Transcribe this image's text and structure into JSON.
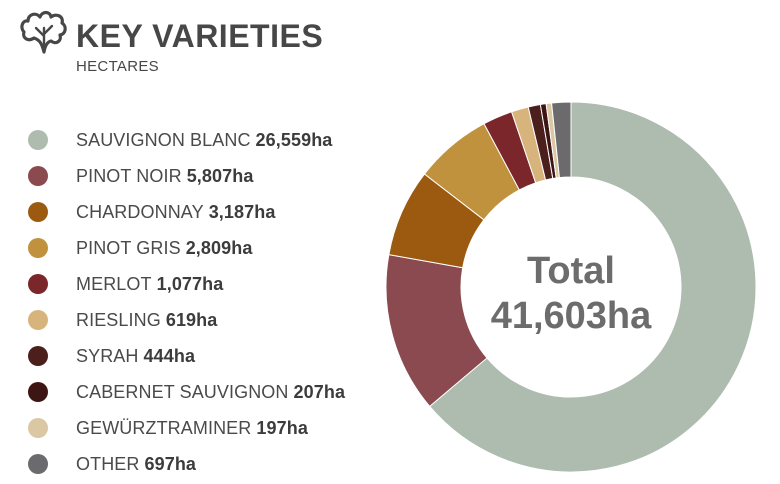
{
  "header": {
    "title": "KEY VARIETIES",
    "subtitle": "HECTARES",
    "icon": "grape-leaf-icon"
  },
  "chart_data": {
    "type": "pie",
    "variant": "donut",
    "unit": "ha",
    "center_label": {
      "line1": "Total",
      "line2": "41,603ha"
    },
    "total": 41603,
    "legend_position": "left",
    "categories": [
      "SAUVIGNON BLANC",
      "PINOT NOIR",
      "CHARDONNAY",
      "PINOT GRIS",
      "MERLOT",
      "RIESLING",
      "SYRAH",
      "CABERNET SAUVIGNON",
      "GEWÜRZTRAMINER",
      "OTHER"
    ],
    "values": [
      26559,
      5807,
      3187,
      2809,
      1077,
      619,
      444,
      207,
      197,
      697
    ],
    "value_labels": [
      "26,559ha",
      "5,807ha",
      "3,187ha",
      "2,809ha",
      "1,077ha",
      "619ha",
      "444ha",
      "207ha",
      "197ha",
      "697ha"
    ],
    "colors": [
      "#adbcaf",
      "#8a4a4f",
      "#9c5a10",
      "#c0923d",
      "#7a262a",
      "#d6b47c",
      "#4a1f1c",
      "#3d1614",
      "#dac7a4",
      "#6b6b6d"
    ]
  }
}
